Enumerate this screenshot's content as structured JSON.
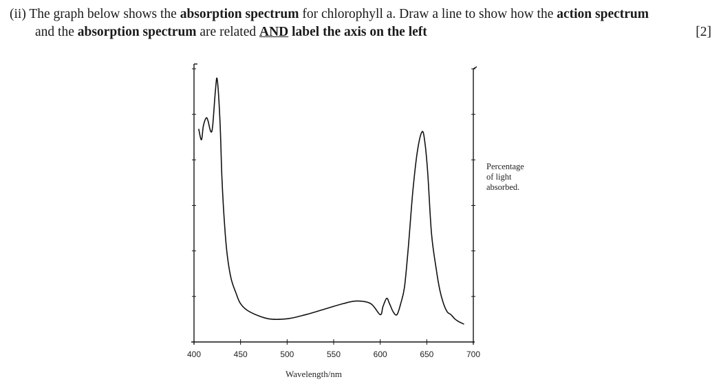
{
  "question": {
    "number": "(ii)",
    "line1_a": "The graph below shows the ",
    "line1_b": "absorption spectrum",
    "line1_c": " for chlorophyll a.  Draw a line to show how the ",
    "line1_d": "action spectrum",
    "line2_a": "and the ",
    "line2_b": "absorption spectrum",
    "line2_c": " are related ",
    "line2_d": "AND",
    "line2_e": " label the axis on the left",
    "marks": "[2]"
  },
  "chart_data": {
    "type": "line",
    "title": "",
    "xlabel": "Wavelength/nm",
    "ylabel_left": "",
    "ylabel_right": [
      "Percentage",
      "of light",
      "absorbed."
    ],
    "xlim": [
      400,
      700
    ],
    "ylim": [
      0,
      100
    ],
    "x_ticks": [
      400,
      450,
      500,
      550,
      600,
      650,
      700
    ],
    "grid": false,
    "series": [
      {
        "x": [
          405,
          408,
          410,
          413,
          415,
          418,
          420,
          423,
          425,
          428,
          430,
          433,
          436,
          440,
          445,
          450,
          460,
          480,
          500,
          520,
          540,
          560,
          575,
          590,
          600,
          603,
          607,
          610,
          614,
          618,
          622,
          626,
          630,
          635,
          640,
          645,
          648,
          651,
          655,
          660,
          664,
          668,
          672,
          676,
          680,
          684,
          687,
          690
        ],
        "y": [
          78,
          74,
          79,
          82,
          81,
          77,
          79,
          92,
          96,
          80,
          60,
          42,
          31,
          23,
          18,
          14,
          11,
          8.5,
          8.5,
          10,
          12,
          14,
          15,
          14,
          10,
          13,
          16,
          14,
          11,
          10,
          14,
          20,
          34,
          55,
          70,
          77,
          73,
          62,
          40,
          27,
          19,
          14,
          11,
          10,
          8.5,
          7.5,
          7,
          6.5
        ]
      }
    ]
  }
}
